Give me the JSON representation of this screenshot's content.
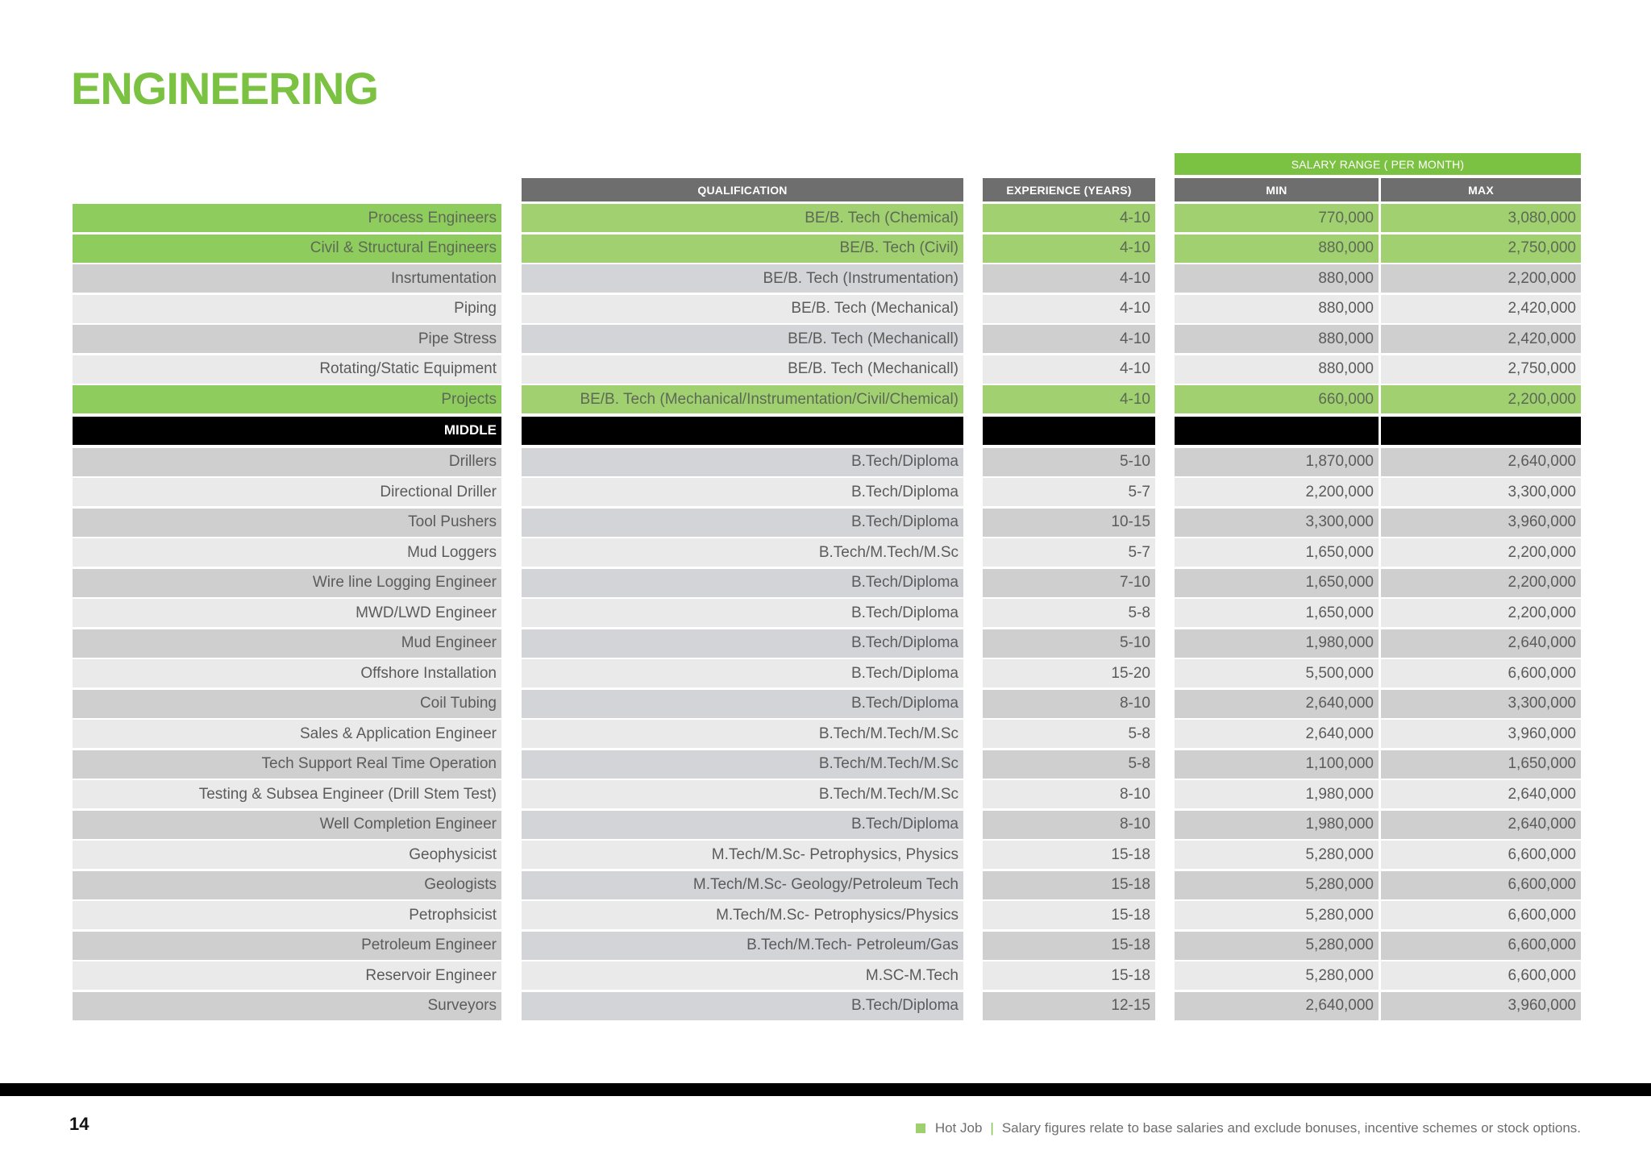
{
  "page": {
    "title": "ENGINEERING",
    "page_number": "14"
  },
  "table": {
    "headers": {
      "salary_range": "SALARY RANGE ( PER MONTH)",
      "qualification": "QUALIFICATION",
      "experience": "EXPERIENCE (YEARS)",
      "min": "MIN",
      "max": "MAX"
    },
    "rows": [
      {
        "type": "hot",
        "role": "Process Engineers",
        "qualification": "BE/B. Tech (Chemical)",
        "experience": "4-10",
        "min": "770,000",
        "max": "3,080,000"
      },
      {
        "type": "hot",
        "role": "Civil & Structural Engineers",
        "qualification": "BE/B. Tech (Civil)",
        "experience": "4-10",
        "min": "880,000",
        "max": "2,750,000"
      },
      {
        "type": "dark",
        "role": "Insrtumentation",
        "qualification": "BE/B. Tech (Instrumentation)",
        "experience": "4-10",
        "min": "880,000",
        "max": "2,200,000"
      },
      {
        "type": "light",
        "role": "Piping",
        "qualification": "BE/B. Tech (Mechanical)",
        "experience": "4-10",
        "min": "880,000",
        "max": "2,420,000"
      },
      {
        "type": "dark",
        "role": "Pipe Stress",
        "qualification": "BE/B. Tech (Mechanicall)",
        "experience": "4-10",
        "min": "880,000",
        "max": "2,420,000"
      },
      {
        "type": "light",
        "role": "Rotating/Static Equipment",
        "qualification": "BE/B. Tech (Mechanicall)",
        "experience": "4-10",
        "min": "880,000",
        "max": "2,750,000"
      },
      {
        "type": "hot",
        "role": "Projects",
        "qualification": "BE/B. Tech (Mechanical/Instrumentation/Civil/Chemical)",
        "experience": "4-10",
        "min": "660,000",
        "max": "2,200,000"
      },
      {
        "type": "section",
        "role": "MIDDLE",
        "qualification": "",
        "experience": "",
        "min": "",
        "max": ""
      },
      {
        "type": "dark",
        "role": "Drillers",
        "qualification": "B.Tech/Diploma",
        "experience": "5-10",
        "min": "1,870,000",
        "max": "2,640,000"
      },
      {
        "type": "light",
        "role": "Directional Driller",
        "qualification": "B.Tech/Diploma",
        "experience": "5-7",
        "min": "2,200,000",
        "max": "3,300,000"
      },
      {
        "type": "dark",
        "role": "Tool Pushers",
        "qualification": "B.Tech/Diploma",
        "experience": "10-15",
        "min": "3,300,000",
        "max": "3,960,000"
      },
      {
        "type": "light",
        "role": "Mud Loggers",
        "qualification": "B.Tech/M.Tech/M.Sc",
        "experience": "5-7",
        "min": "1,650,000",
        "max": "2,200,000"
      },
      {
        "type": "dark",
        "role": "Wire line Logging Engineer",
        "qualification": "B.Tech/Diploma",
        "experience": "7-10",
        "min": "1,650,000",
        "max": "2,200,000"
      },
      {
        "type": "light",
        "role": "MWD/LWD Engineer",
        "qualification": "B.Tech/Diploma",
        "experience": "5-8",
        "min": "1,650,000",
        "max": "2,200,000"
      },
      {
        "type": "dark",
        "role": "Mud Engineer",
        "qualification": "B.Tech/Diploma",
        "experience": "5-10",
        "min": "1,980,000",
        "max": "2,640,000"
      },
      {
        "type": "light",
        "role": "Offshore Installation",
        "qualification": "B.Tech/Diploma",
        "experience": "15-20",
        "min": "5,500,000",
        "max": "6,600,000"
      },
      {
        "type": "dark",
        "role": "Coil Tubing",
        "qualification": "B.Tech/Diploma",
        "experience": "8-10",
        "min": "2,640,000",
        "max": "3,300,000"
      },
      {
        "type": "light",
        "role": "Sales & Application Engineer",
        "qualification": "B.Tech/M.Tech/M.Sc",
        "experience": "5-8",
        "min": "2,640,000",
        "max": "3,960,000"
      },
      {
        "type": "dark",
        "role": "Tech Support Real Time Operation",
        "qualification": "B.Tech/M.Tech/M.Sc",
        "experience": "5-8",
        "min": "1,100,000",
        "max": "1,650,000"
      },
      {
        "type": "light",
        "role": "Testing & Subsea Engineer (Drill Stem Test)",
        "qualification": "B.Tech/M.Tech/M.Sc",
        "experience": "8-10",
        "min": "1,980,000",
        "max": "2,640,000"
      },
      {
        "type": "dark",
        "role": "Well Completion Engineer",
        "qualification": "B.Tech/Diploma",
        "experience": "8-10",
        "min": "1,980,000",
        "max": "2,640,000"
      },
      {
        "type": "light",
        "role": "Geophysicist",
        "qualification": "M.Tech/M.Sc- Petrophysics, Physics",
        "experience": "15-18",
        "min": "5,280,000",
        "max": "6,600,000"
      },
      {
        "type": "dark",
        "role": "Geologists",
        "qualification": "M.Tech/M.Sc- Geology/Petroleum Tech",
        "experience": "15-18",
        "min": "5,280,000",
        "max": "6,600,000"
      },
      {
        "type": "light",
        "role": "Petrophsicist",
        "qualification": "M.Tech/M.Sc- Petrophysics/Physics",
        "experience": "15-18",
        "min": "5,280,000",
        "max": "6,600,000"
      },
      {
        "type": "dark",
        "role": "Petroleum Engineer",
        "qualification": "B.Tech/M.Tech- Petroleum/Gas",
        "experience": "15-18",
        "min": "5,280,000",
        "max": "6,600,000"
      },
      {
        "type": "light",
        "role": "Reservoir Engineer",
        "qualification": "M.SC-M.Tech",
        "experience": "15-18",
        "min": "5,280,000",
        "max": "6,600,000"
      },
      {
        "type": "dark",
        "role": "Surveyors",
        "qualification": "B.Tech/Diploma",
        "experience": "12-15",
        "min": "2,640,000",
        "max": "3,960,000"
      }
    ]
  },
  "footer": {
    "legend_label": "Hot Job",
    "separator": "|",
    "note": "Salary figures relate to base salaries and exclude bonuses, incentive schemes or stock options.",
    "colors": {
      "hot": "#9fd06f",
      "accent": "#7cc242"
    }
  }
}
